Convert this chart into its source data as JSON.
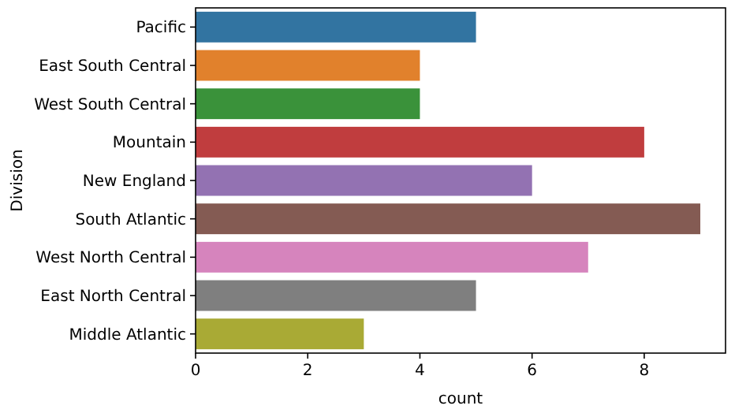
{
  "chart_data": {
    "type": "bar",
    "orientation": "horizontal",
    "xlabel": "count",
    "ylabel": "Division",
    "categories": [
      "Pacific",
      "East South Central",
      "West South Central",
      "Mountain",
      "New England",
      "South Atlantic",
      "West North Central",
      "East North Central",
      "Middle Atlantic"
    ],
    "values": [
      5,
      4,
      4,
      8,
      6,
      9,
      7,
      5,
      3
    ],
    "colors": [
      "#3274a1",
      "#e1812c",
      "#3a923a",
      "#c03d3e",
      "#9372b2",
      "#845b53",
      "#d684bd",
      "#7f7f7f",
      "#a9aa35"
    ],
    "xlim": [
      0,
      9.45
    ],
    "xticks": [
      0,
      2,
      4,
      6,
      8
    ]
  }
}
